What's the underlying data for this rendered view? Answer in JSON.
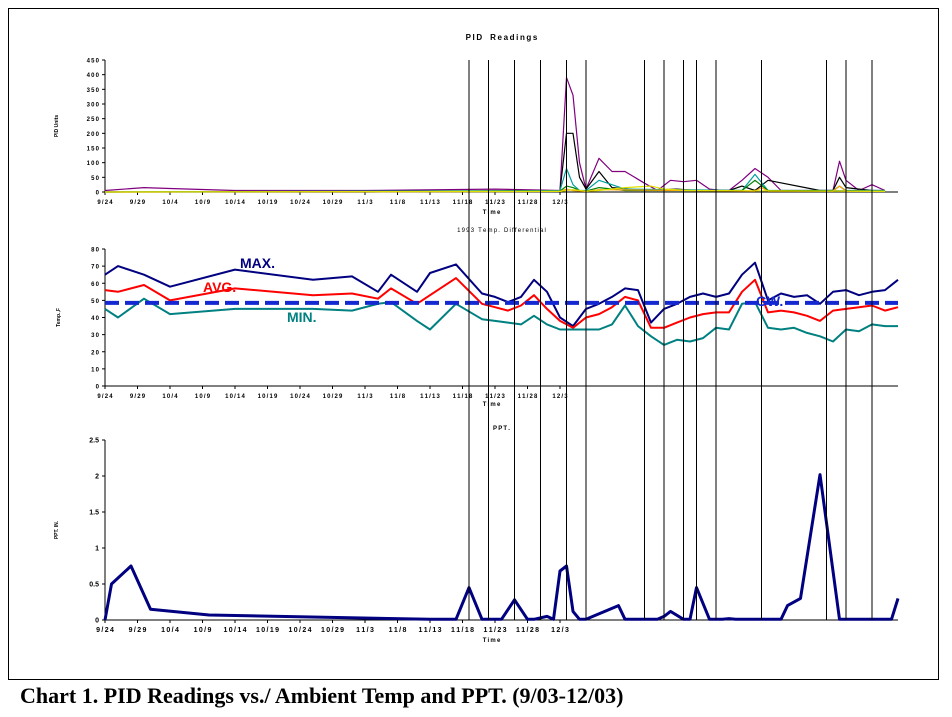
{
  "caption": "Chart 1. PID Readings vs./ Ambient Temp and PPT. (9/03-12/03)",
  "x_tick_labels": [
    "9/24",
    "9/29",
    "10/4",
    "10/9",
    "10/14",
    "10/19",
    "10/24",
    "10/29",
    "11/3",
    "11/8",
    "11/13",
    "11/18",
    "11/23",
    "11/28",
    "12/3"
  ],
  "event_days": [
    56,
    59,
    63,
    67,
    71,
    74,
    83,
    86,
    89,
    91,
    94,
    101,
    111,
    114,
    118
  ],
  "chart_data": [
    {
      "type": "line",
      "title": "PID Readings",
      "xlabel": "Time",
      "ylabel": "PID Units",
      "x_start": "9/24",
      "ylim": [
        0,
        450
      ],
      "yticks": [
        0,
        50,
        100,
        150,
        200,
        250,
        300,
        350,
        400,
        450
      ],
      "series": [
        {
          "color": "#800080",
          "x": [
            0,
            6,
            10,
            20,
            40,
            60,
            70,
            71,
            72,
            73,
            74,
            76,
            78,
            80,
            83,
            85,
            87,
            89,
            91,
            93,
            95,
            96,
            98,
            100,
            102,
            104,
            110,
            112,
            113,
            114,
            116,
            118,
            120
          ],
          "y": [
            5,
            15,
            12,
            5,
            5,
            10,
            5,
            390,
            330,
            100,
            10,
            115,
            70,
            70,
            30,
            5,
            40,
            35,
            40,
            10,
            5,
            5,
            40,
            80,
            50,
            5,
            5,
            5,
            105,
            40,
            5,
            25,
            5
          ]
        },
        {
          "color": "#000000",
          "x": [
            0,
            40,
            70,
            71,
            72,
            73,
            74,
            76,
            78,
            83,
            88,
            91,
            95,
            96,
            98,
            100,
            102,
            110,
            112,
            113,
            114,
            116,
            118,
            120
          ],
          "y": [
            0,
            0,
            5,
            200,
            200,
            50,
            10,
            70,
            15,
            5,
            10,
            5,
            5,
            5,
            20,
            5,
            40,
            5,
            5,
            50,
            15,
            10,
            5,
            5
          ]
        },
        {
          "color": "#00A0A0",
          "x": [
            0,
            70,
            71,
            72,
            73,
            74,
            76,
            80,
            98,
            100,
            102,
            112,
            113,
            114,
            120
          ],
          "y": [
            0,
            5,
            80,
            25,
            5,
            5,
            40,
            10,
            5,
            60,
            5,
            5,
            20,
            5,
            5
          ]
        },
        {
          "color": "#008000",
          "x": [
            0,
            70,
            71,
            72,
            73,
            74,
            76,
            80,
            98,
            100,
            102,
            120
          ],
          "y": [
            0,
            3,
            20,
            15,
            5,
            3,
            15,
            5,
            5,
            40,
            5,
            3
          ]
        },
        {
          "color": "#FFA000",
          "x": [
            0,
            70,
            71,
            72,
            74,
            76,
            100,
            101,
            102,
            112,
            113,
            114,
            120
          ],
          "y": [
            0,
            2,
            10,
            5,
            2,
            8,
            3,
            15,
            3,
            3,
            20,
            3,
            2
          ]
        },
        {
          "color": "#E0E000",
          "x": [
            0,
            70,
            72,
            74,
            76,
            80,
            84,
            86,
            90,
            120
          ],
          "y": [
            0,
            2,
            8,
            3,
            5,
            15,
            20,
            10,
            5,
            2
          ]
        }
      ]
    },
    {
      "type": "line",
      "title": "1993 Temp. Differential",
      "xlabel": "Time",
      "ylabel": "Temp.,F",
      "x_start": "9/24",
      "ylim": [
        0,
        80
      ],
      "yticks": [
        0,
        10,
        20,
        30,
        40,
        50,
        60,
        70,
        80
      ],
      "series": [
        {
          "name": "MAX.",
          "color": "#000080",
          "x": [
            0,
            2,
            6,
            10,
            20,
            32,
            38,
            42,
            44,
            48,
            50,
            54,
            58,
            60,
            62,
            64,
            66,
            68,
            70,
            72,
            74,
            76,
            78,
            80,
            82,
            84,
            86,
            88,
            90,
            92,
            94,
            96,
            98,
            100,
            102,
            104,
            106,
            108,
            110,
            112,
            114,
            116,
            118,
            120,
            122
          ],
          "y": [
            65,
            70,
            65,
            58,
            68,
            62,
            64,
            55,
            65,
            55,
            66,
            71,
            54,
            52,
            49,
            52,
            62,
            55,
            40,
            35,
            45,
            48,
            52,
            57,
            56,
            37,
            45,
            48,
            52,
            54,
            52,
            54,
            65,
            72,
            50,
            54,
            52,
            53,
            48,
            55,
            56,
            53,
            55,
            56,
            62
          ]
        },
        {
          "name": "AVG.",
          "color": "#FF0000",
          "x": [
            0,
            2,
            6,
            10,
            20,
            32,
            38,
            42,
            44,
            48,
            50,
            54,
            58,
            60,
            62,
            64,
            66,
            68,
            70,
            72,
            74,
            76,
            78,
            80,
            82,
            84,
            86,
            88,
            90,
            92,
            94,
            96,
            98,
            100,
            102,
            104,
            106,
            108,
            110,
            112,
            114,
            116,
            118,
            120,
            122
          ],
          "y": [
            56,
            55,
            59,
            50,
            57,
            53,
            54,
            51,
            57,
            48,
            53,
            63,
            48,
            46,
            44,
            47,
            53,
            45,
            38,
            34,
            40,
            42,
            46,
            52,
            50,
            34,
            34,
            37,
            40,
            42,
            43,
            43,
            55,
            62,
            43,
            44,
            43,
            41,
            38,
            44,
            45,
            46,
            47,
            44,
            46
          ]
        },
        {
          "name": "MIN.",
          "color": "#008080",
          "x": [
            0,
            2,
            6,
            10,
            20,
            32,
            38,
            42,
            44,
            48,
            50,
            54,
            58,
            60,
            62,
            64,
            66,
            68,
            70,
            72,
            74,
            76,
            78,
            80,
            82,
            84,
            86,
            88,
            90,
            92,
            94,
            96,
            98,
            100,
            102,
            104,
            106,
            108,
            110,
            112,
            114,
            116,
            118,
            120,
            122
          ],
          "y": [
            45,
            40,
            51,
            42,
            45,
            45,
            44,
            48,
            49,
            38,
            33,
            48,
            39,
            38,
            37,
            36,
            41,
            36,
            33,
            33,
            33,
            33,
            36,
            47,
            35,
            29,
            24,
            27,
            26,
            28,
            34,
            33,
            48,
            49,
            34,
            33,
            34,
            31,
            29,
            26,
            33,
            32,
            36,
            35,
            35
          ]
        },
        {
          "name": "GW.",
          "color": "#1428D2",
          "dashed": true,
          "x": [
            0,
            122
          ],
          "y": [
            48.5,
            48.5
          ]
        }
      ]
    },
    {
      "type": "line",
      "title": "PPT.",
      "xlabel": "Time",
      "ylabel": "PPT. IN.",
      "x_start": "9/24",
      "ylim": [
        0,
        2.5
      ],
      "yticks": [
        "0",
        "0.5",
        "1",
        "1.5",
        "2",
        "2.5"
      ],
      "series": [
        {
          "color": "#000080",
          "x": [
            0,
            1,
            4,
            7,
            16,
            50,
            54,
            56,
            58,
            61,
            63,
            65,
            66,
            68,
            69,
            70,
            71,
            72,
            73,
            74,
            79,
            80,
            81,
            85,
            86,
            87,
            89,
            90,
            91,
            93,
            95,
            96,
            97,
            99,
            100,
            101,
            103,
            104,
            105,
            107,
            110,
            113,
            114,
            115,
            119,
            120,
            121,
            122
          ],
          "y": [
            0,
            0.5,
            0.75,
            0.15,
            0.07,
            0.01,
            0.01,
            0.45,
            0.01,
            0.01,
            0.28,
            0.01,
            0.01,
            0.05,
            0.01,
            0.68,
            0.75,
            0.12,
            0.01,
            0.01,
            0.2,
            0.01,
            0.01,
            0.01,
            0.05,
            0.12,
            0.01,
            0.01,
            0.45,
            0.01,
            0.01,
            0.02,
            0.01,
            0.01,
            0.01,
            0.01,
            0.01,
            0.01,
            0.2,
            0.3,
            2.02,
            0.01,
            0.01,
            0.01,
            0.01,
            0.01,
            0.01,
            0.3
          ]
        }
      ]
    }
  ]
}
